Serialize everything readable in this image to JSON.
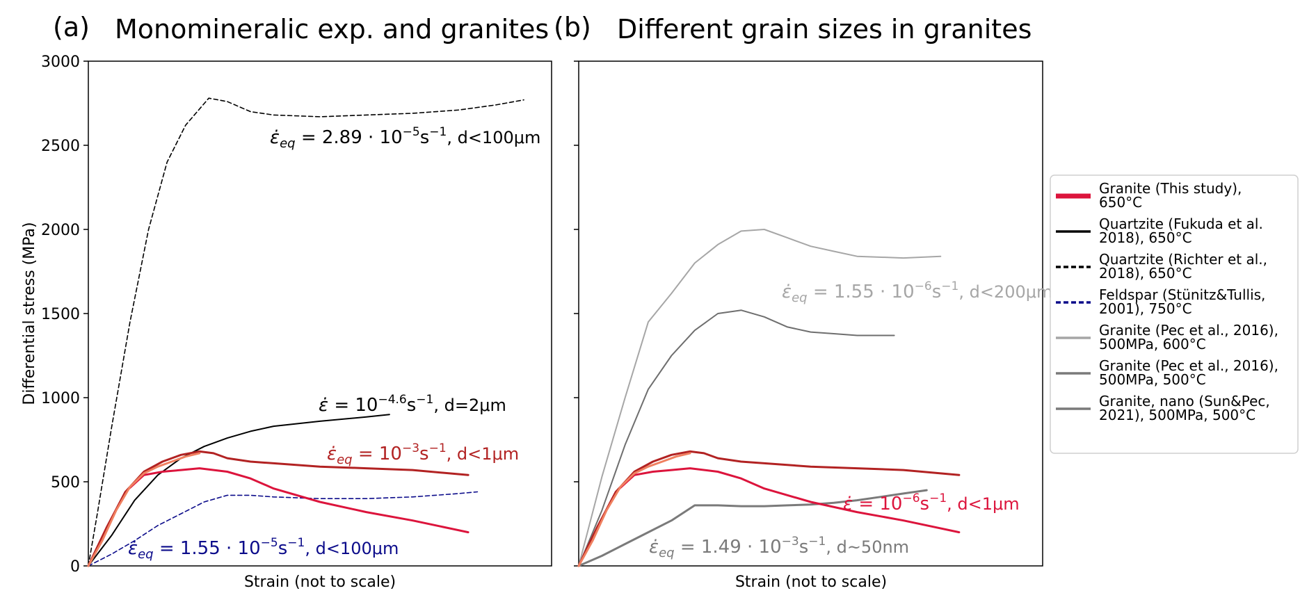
{
  "chart_data": [
    {
      "type": "line",
      "panel": "(a)",
      "title": "Monomineralic exp. and granites",
      "xlabel": "Strain (not to scale)",
      "ylabel": "Differential stress (MPa)",
      "ylim": [
        0,
        3000
      ],
      "xlim": [
        0,
        1
      ],
      "yticks": [
        "0",
        "500",
        "1000",
        "1500",
        "2000",
        "2500",
        "3000"
      ],
      "grid": false,
      "series": [
        {
          "ref": "s_richter",
          "color": "#000000",
          "style": "dashed",
          "x": [
            0,
            0.02,
            0.05,
            0.09,
            0.13,
            0.17,
            0.21,
            0.26,
            0.3,
            0.35,
            0.4,
            0.5,
            0.6,
            0.7,
            0.8,
            0.88,
            0.94
          ],
          "y": [
            0,
            320,
            820,
            1450,
            2000,
            2400,
            2620,
            2780,
            2760,
            2700,
            2680,
            2670,
            2680,
            2690,
            2710,
            2740,
            2770
          ]
        },
        {
          "ref": "s_fukuda",
          "color": "#000000",
          "style": "solid",
          "x": [
            0,
            0.05,
            0.1,
            0.15,
            0.2,
            0.25,
            0.3,
            0.35,
            0.4,
            0.5,
            0.6,
            0.65
          ],
          "y": [
            0,
            180,
            390,
            540,
            640,
            710,
            760,
            800,
            830,
            860,
            885,
            900
          ]
        },
        {
          "ref": "s_stunitz",
          "color": "#0b0b8a",
          "style": "dashed",
          "x": [
            0,
            0.05,
            0.1,
            0.15,
            0.2,
            0.25,
            0.3,
            0.35,
            0.4,
            0.5,
            0.6,
            0.7,
            0.8,
            0.84
          ],
          "y": [
            0,
            70,
            150,
            240,
            310,
            380,
            420,
            420,
            410,
            400,
            400,
            410,
            430,
            440
          ]
        },
        {
          "ref": "s_this_red",
          "color": "#dc143c",
          "style": "solid",
          "x": [
            0,
            0.04,
            0.08,
            0.12,
            0.16,
            0.2,
            0.24,
            0.3,
            0.35,
            0.4,
            0.5,
            0.6,
            0.7,
            0.82
          ],
          "y": [
            0,
            230,
            440,
            540,
            560,
            570,
            580,
            560,
            520,
            460,
            380,
            320,
            270,
            200
          ]
        },
        {
          "ref": "s_this_darkred",
          "color": "#b22222",
          "style": "solid",
          "x": [
            0,
            0.04,
            0.08,
            0.12,
            0.16,
            0.2,
            0.24,
            0.27,
            0.3,
            0.35,
            0.4,
            0.5,
            0.6,
            0.7,
            0.82
          ],
          "y": [
            0,
            230,
            440,
            560,
            620,
            660,
            680,
            670,
            640,
            620,
            610,
            590,
            580,
            570,
            540
          ]
        },
        {
          "ref": "s_this_salmon",
          "color": "#f08060",
          "style": "solid",
          "x": [
            0,
            0.03,
            0.06,
            0.09,
            0.12,
            0.15,
            0.18,
            0.21,
            0.24
          ],
          "y": [
            0,
            150,
            330,
            470,
            550,
            590,
            620,
            650,
            670
          ]
        }
      ],
      "annotations": [
        {
          "ref": "a1",
          "color": "#000000",
          "tex": "ε̇eq = 2.89 · 10⁻⁵s⁻¹, d<100μm",
          "prefix": "ε̇",
          "sub": "eq",
          "main": " = 2.89 · 10",
          "sup": "−5",
          "unit": "s",
          "usup": "−1",
          "tail": ", d<100μm"
        },
        {
          "ref": "a2",
          "color": "#000000",
          "tex": "ε̇ = 10⁻⁴·⁶s⁻¹, d=2μm",
          "prefix": "ε̇",
          "sub": "",
          "main": " = 10",
          "sup": "−4.6",
          "unit": "s",
          "usup": "−1",
          "tail": ", d=2μm"
        },
        {
          "ref": "a3",
          "color": "#b22222",
          "tex": "ε̇eq = 10⁻³s⁻¹, d<1μm",
          "prefix": "ε̇",
          "sub": "eq",
          "main": " = 10",
          "sup": "−3",
          "unit": "s",
          "usup": "−1",
          "tail": ", d<1μm"
        },
        {
          "ref": "a4",
          "color": "#0b0b8a",
          "tex": "ε̇eq = 1.55 · 10⁻⁵s⁻¹, d<100μm",
          "prefix": "ε̇",
          "sub": "eq",
          "main": " = 1.55 · 10",
          "sup": "−5",
          "unit": "s",
          "usup": "−1",
          "tail": ", d<100μm"
        }
      ]
    },
    {
      "type": "line",
      "panel": "(b)",
      "title": "Different grain sizes in granites",
      "xlabel": "Strain (not to scale)",
      "ylim": [
        0,
        3000
      ],
      "xlim": [
        0,
        1
      ],
      "grid": false,
      "series": [
        {
          "ref": "s_pec600",
          "color": "#a6a6a6",
          "style": "solid",
          "x": [
            0,
            0.05,
            0.1,
            0.15,
            0.2,
            0.25,
            0.3,
            0.35,
            0.4,
            0.45,
            0.5,
            0.55,
            0.6,
            0.7,
            0.78
          ],
          "y": [
            0,
            530,
            1000,
            1450,
            1620,
            1800,
            1910,
            1990,
            2000,
            1950,
            1900,
            1870,
            1840,
            1830,
            1840
          ]
        },
        {
          "ref": "s_pec500",
          "color": "#6e6e6e",
          "style": "solid",
          "x": [
            0,
            0.05,
            0.1,
            0.15,
            0.2,
            0.25,
            0.3,
            0.35,
            0.4,
            0.45,
            0.5,
            0.55,
            0.6,
            0.68
          ],
          "y": [
            0,
            330,
            720,
            1050,
            1250,
            1400,
            1500,
            1520,
            1480,
            1420,
            1390,
            1380,
            1370,
            1370
          ]
        },
        {
          "ref": "s_nano",
          "color": "#7a7a7a",
          "style": "solid",
          "x": [
            0,
            0.05,
            0.1,
            0.15,
            0.2,
            0.25,
            0.3,
            0.35,
            0.4,
            0.45,
            0.5,
            0.55,
            0.6,
            0.65,
            0.7,
            0.75
          ],
          "y": [
            0,
            60,
            130,
            200,
            270,
            360,
            360,
            355,
            355,
            360,
            365,
            375,
            390,
            410,
            430,
            450
          ]
        },
        {
          "ref": "s_this_red",
          "color": "#dc143c",
          "style": "solid",
          "x": [
            0,
            0.04,
            0.08,
            0.12,
            0.16,
            0.2,
            0.24,
            0.3,
            0.35,
            0.4,
            0.5,
            0.6,
            0.7,
            0.82
          ],
          "y": [
            0,
            230,
            440,
            540,
            560,
            570,
            580,
            560,
            520,
            460,
            380,
            320,
            270,
            200
          ]
        },
        {
          "ref": "s_this_darkred",
          "color": "#b22222",
          "style": "solid",
          "x": [
            0,
            0.04,
            0.08,
            0.12,
            0.16,
            0.2,
            0.24,
            0.27,
            0.3,
            0.35,
            0.4,
            0.5,
            0.6,
            0.7,
            0.82
          ],
          "y": [
            0,
            230,
            440,
            560,
            620,
            660,
            680,
            670,
            640,
            620,
            610,
            590,
            580,
            570,
            540
          ]
        },
        {
          "ref": "s_this_salmon",
          "color": "#f08060",
          "style": "solid",
          "x": [
            0,
            0.03,
            0.06,
            0.09,
            0.12,
            0.15,
            0.18,
            0.21,
            0.24
          ],
          "y": [
            0,
            150,
            330,
            470,
            550,
            590,
            620,
            650,
            670
          ]
        }
      ],
      "annotations": [
        {
          "ref": "b1",
          "color": "#a6a6a6",
          "tex": "ε̇eq = 1.55 · 10⁻⁶s⁻¹, d<200μm",
          "prefix": "ε̇",
          "sub": "eq",
          "main": " = 1.55 · 10",
          "sup": "−6",
          "unit": "s",
          "usup": "−1",
          "tail": ", d<200μm"
        },
        {
          "ref": "b2",
          "color": "#dc143c",
          "tex": "ε̇ = 10⁻⁶s⁻¹, d<1μm",
          "prefix": "ε̇",
          "sub": "",
          "main": " = 10",
          "sup": "−6",
          "unit": "s",
          "usup": "−1",
          "tail": ", d<1μm"
        },
        {
          "ref": "b3",
          "color": "#7a7a7a",
          "tex": "ε̇eq = 1.49 · 10⁻³s⁻¹, d~50nm",
          "prefix": "ε̇",
          "sub": "eq",
          "main": " = 1.49 · 10",
          "sup": "−3",
          "unit": "s",
          "usup": "−1",
          "tail": ", d~50nm"
        }
      ]
    }
  ],
  "legend": {
    "placement": "right",
    "items": [
      {
        "line1": "Granite (This study),",
        "line2": "650°C",
        "color": "#dc143c",
        "style": "thick"
      },
      {
        "line1": "Quartzite   (Fukuda et al.",
        "line2": "2018), 650°C",
        "color": "#000000",
        "style": "solid"
      },
      {
        "line1": "Quartzite (Richter et al.,",
        "line2": "2018), 650°C",
        "color": "#000000",
        "style": "dashed"
      },
      {
        "line1": "Feldspar (Stünitz&Tullis,",
        "line2": "2001), 750°C",
        "color": "#0b0b8a",
        "style": "dashed"
      },
      {
        "line1": "Granite (Pec et al., 2016),",
        "line2": "500MPa, 600°C",
        "color": "#a6a6a6",
        "style": "solid"
      },
      {
        "line1": "Granite (Pec et al., 2016),",
        "line2": "500MPa, 500°C",
        "color": "#7a7a7a",
        "style": "solid"
      },
      {
        "line1": "Granite, nano (Sun&Pec,",
        "line2": "2021), 500MPa, 500°C",
        "color": "#7a7a7a",
        "style": "solid"
      }
    ]
  }
}
